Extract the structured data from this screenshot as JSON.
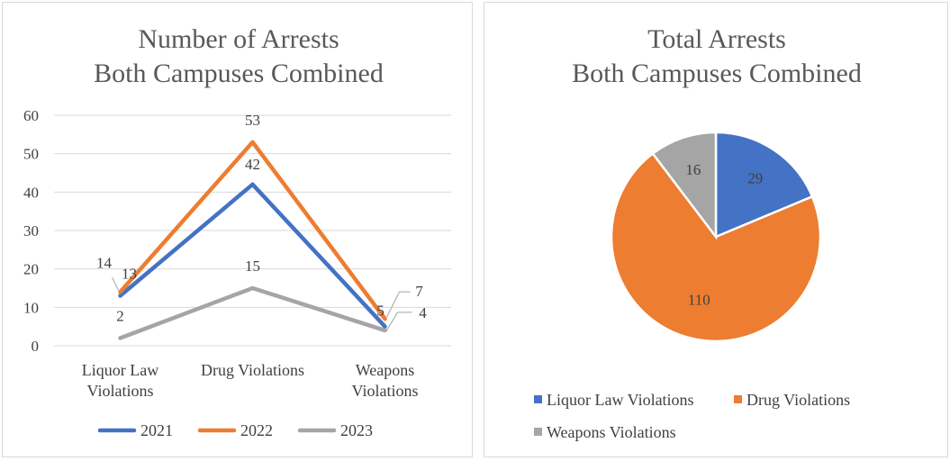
{
  "chart_data": [
    {
      "type": "line",
      "title_lines": [
        "Number of Arrests",
        "Both Campuses Combined"
      ],
      "categories": [
        [
          "Liquor Law",
          "Violations"
        ],
        [
          "Drug Violations"
        ],
        [
          "Weapons",
          "Violations"
        ]
      ],
      "series": [
        {
          "name": "2021",
          "values": [
            13,
            42,
            5
          ],
          "color": "#4472c4"
        },
        {
          "name": "2022",
          "values": [
            14,
            53,
            7
          ],
          "color": "#ed7d31"
        },
        {
          "name": "2023",
          "values": [
            2,
            15,
            4
          ],
          "color": "#a5a5a5"
        }
      ],
      "ylim": [
        0,
        60
      ],
      "yticks": [
        0,
        10,
        20,
        30,
        40,
        50,
        60
      ],
      "grid": true,
      "legend": "bottom"
    },
    {
      "type": "pie",
      "title_lines": [
        "Total Arrests",
        "Both Campuses Combined"
      ],
      "labels": [
        "Liquor Law Violations",
        "Drug Violations",
        "Weapons Violations"
      ],
      "values": [
        29,
        110,
        16
      ],
      "colors": [
        "#4472c4",
        "#ed7d31",
        "#a5a5a5"
      ],
      "legend": "bottom"
    }
  ]
}
